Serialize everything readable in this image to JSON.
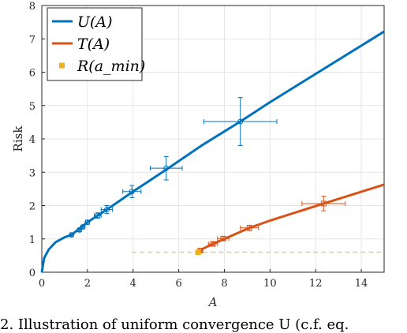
{
  "chart_data": {
    "type": "line",
    "xlabel": "A",
    "ylabel": "Risk",
    "xlim": [
      0,
      15
    ],
    "ylim": [
      0,
      8
    ],
    "xticks": [
      0,
      2,
      4,
      6,
      8,
      10,
      12,
      14
    ],
    "yticks": [
      0,
      1,
      2,
      3,
      4,
      5,
      6,
      7,
      8
    ],
    "grid": true,
    "legend_position": "top-left",
    "series": [
      {
        "name": "U(A)",
        "color": "#0072BD",
        "curve": {
          "x": [
            0,
            0.1,
            0.3,
            0.6,
            1,
            1.3,
            2,
            3,
            4,
            5.5,
            7,
            8.7,
            10,
            12,
            15
          ],
          "y": [
            0,
            0.42,
            0.68,
            0.9,
            1.05,
            1.12,
            1.5,
            1.95,
            2.42,
            3.1,
            3.8,
            4.52,
            5.1,
            5.95,
            7.22
          ]
        },
        "markers": [
          {
            "x": 1.3,
            "y": 1.12,
            "xerr": 0.05,
            "yerr": 0.04
          },
          {
            "x": 1.65,
            "y": 1.27,
            "xerr": 0.06,
            "yerr": 0.05
          },
          {
            "x": 1.8,
            "y": 1.36,
            "xerr": 0.06,
            "yerr": 0.05
          },
          {
            "x": 2.0,
            "y": 1.5,
            "xerr": 0.08,
            "yerr": 0.06
          },
          {
            "x": 2.45,
            "y": 1.7,
            "xerr": 0.15,
            "yerr": 0.08
          },
          {
            "x": 2.85,
            "y": 1.88,
            "xerr": 0.25,
            "yerr": 0.12
          },
          {
            "x": 3.95,
            "y": 2.42,
            "xerr": 0.4,
            "yerr": 0.18
          },
          {
            "x": 5.45,
            "y": 3.12,
            "xerr": 0.7,
            "yerr": 0.35
          },
          {
            "x": 8.7,
            "y": 4.52,
            "xerr": 1.6,
            "yerr": 0.72
          }
        ]
      },
      {
        "name": "T(A)",
        "color": "#D95319",
        "curve": {
          "x": [
            6.9,
            7.1,
            7.5,
            8,
            9.1,
            10,
            12.35,
            15
          ],
          "y": [
            0.62,
            0.72,
            0.85,
            1.0,
            1.33,
            1.55,
            2.06,
            2.63
          ]
        },
        "markers": [
          {
            "x": 6.95,
            "y": 0.65,
            "xerr": 0.05,
            "yerr": 0.03
          },
          {
            "x": 7.5,
            "y": 0.85,
            "xerr": 0.2,
            "yerr": 0.05
          },
          {
            "x": 7.95,
            "y": 1.01,
            "xerr": 0.25,
            "yerr": 0.06
          },
          {
            "x": 9.1,
            "y": 1.33,
            "xerr": 0.4,
            "yerr": 0.08
          },
          {
            "x": 12.35,
            "y": 2.06,
            "xerr": 0.95,
            "yerr": 0.22
          }
        ]
      },
      {
        "name": "R(a_min)",
        "color": "#EDB120",
        "point": {
          "x": 6.85,
          "y": 0.6
        },
        "dashed_line": {
          "x": [
            3.95,
            15
          ],
          "y": 0.6
        }
      }
    ],
    "legend": [
      {
        "series": "U(A)",
        "label": "U(A)"
      },
      {
        "series": "T(A)",
        "label": "T(A)"
      },
      {
        "series": "R(a_min)",
        "label": "R(a_min)"
      }
    ]
  },
  "caption": "2.  Illustration of uniform convergence U (c.f. eq."
}
